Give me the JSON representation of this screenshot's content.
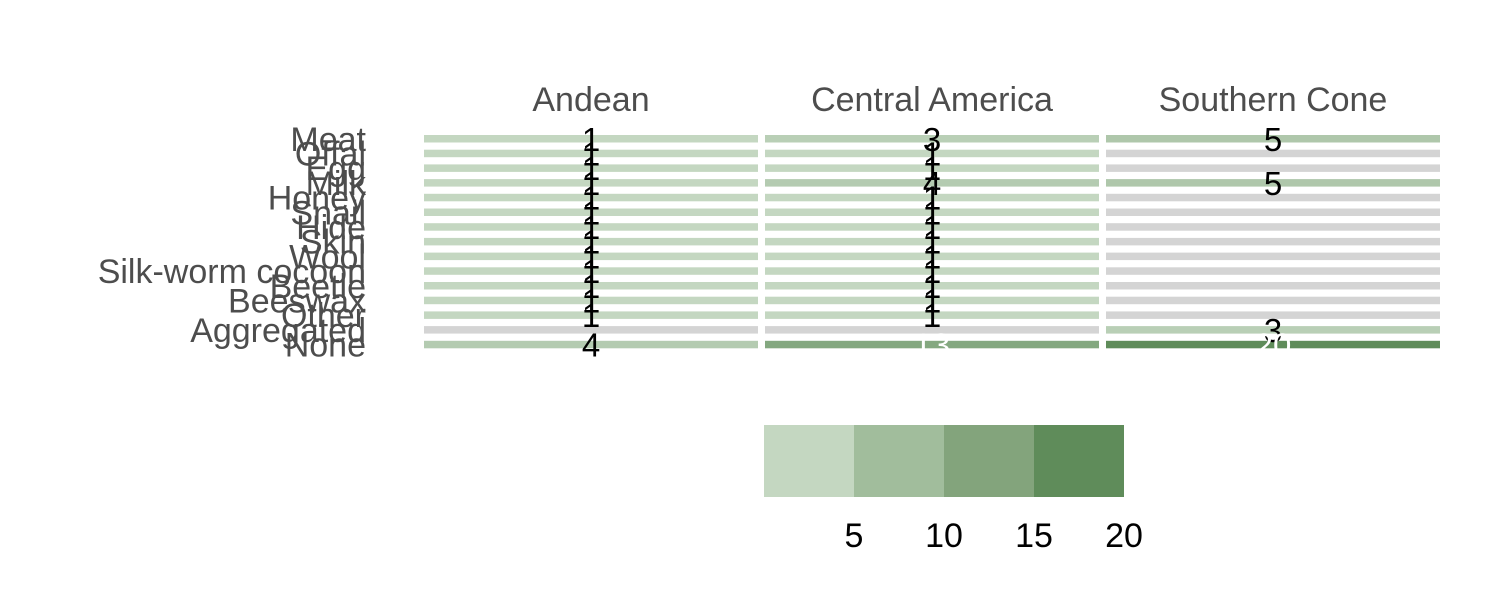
{
  "chart_data": {
    "type": "heatmap",
    "title": "",
    "xlabel": "",
    "ylabel": "",
    "columns": [
      "Andean",
      "Central America",
      "Southern Cone"
    ],
    "rows": [
      "Meat",
      "Offal",
      "Egg",
      "Milk",
      "Honey",
      "Snail",
      "Hide",
      "Skin",
      "Wool",
      "Silk-worm cocoon",
      "Beetle",
      "Beeswax",
      "Other",
      "Aggregated",
      "None"
    ],
    "values": [
      [
        1,
        3,
        5
      ],
      [
        1,
        1,
        null
      ],
      [
        1,
        1,
        null
      ],
      [
        1,
        4,
        5
      ],
      [
        1,
        1,
        null
      ],
      [
        1,
        1,
        null
      ],
      [
        1,
        1,
        null
      ],
      [
        1,
        1,
        null
      ],
      [
        1,
        1,
        null
      ],
      [
        1,
        1,
        null
      ],
      [
        1,
        1,
        null
      ],
      [
        1,
        1,
        null
      ],
      [
        1,
        1,
        null
      ],
      [
        null,
        null,
        3
      ],
      [
        4,
        13,
        20
      ]
    ],
    "missing_color": "#d4d4d4",
    "color_scale": {
      "domain": [
        1,
        20
      ],
      "low_color": "#c4d7c1",
      "high_color": "#5f8c5a",
      "bins": [
        {
          "range": [
            0,
            5
          ],
          "color": "#c4d7c1"
        },
        {
          "range": [
            5,
            10
          ],
          "color": "#a1bd9c"
        },
        {
          "range": [
            10,
            15
          ],
          "color": "#83a47c"
        },
        {
          "range": [
            15,
            20
          ],
          "color": "#5f8c5a"
        }
      ],
      "ticks": [
        5,
        10,
        15,
        20
      ],
      "legend_position": "bottom"
    },
    "label_colors": {
      "dark": "#000000",
      "light": "#ffffff"
    }
  }
}
